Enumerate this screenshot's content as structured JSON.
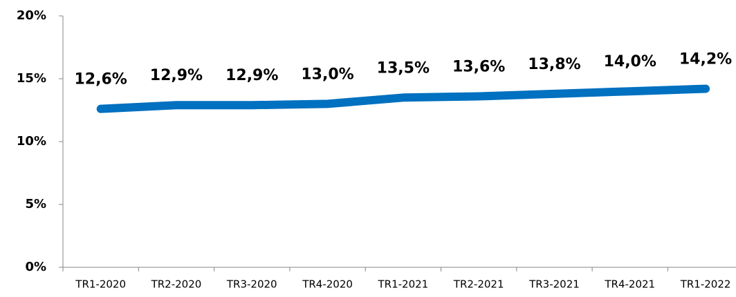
{
  "chart_data": {
    "type": "line",
    "categories": [
      "TR1-2020",
      "TR2-2020",
      "TR3-2020",
      "TR4-2020",
      "TR1-2021",
      "TR2-2021",
      "TR3-2021",
      "TR4-2021",
      "TR1-2022"
    ],
    "series": [
      {
        "color": "#0070c0",
        "values": [
          12.6,
          12.9,
          12.9,
          13.0,
          13.5,
          13.6,
          13.8,
          14.0,
          14.2
        ],
        "value_labels": [
          "12,6%",
          "12,9%",
          "12,9%",
          "13,0%",
          "13,5%",
          "13,6%",
          "13,8%",
          "14,0%",
          "14,2%"
        ]
      }
    ],
    "ylim": [
      0,
      20
    ],
    "yticks": [
      {
        "value": 0,
        "label": "0%"
      },
      {
        "value": 5,
        "label": "5%"
      },
      {
        "value": 10,
        "label": "10%"
      },
      {
        "value": 15,
        "label": "15%"
      },
      {
        "value": 20,
        "label": "20%"
      }
    ],
    "grid": false
  }
}
